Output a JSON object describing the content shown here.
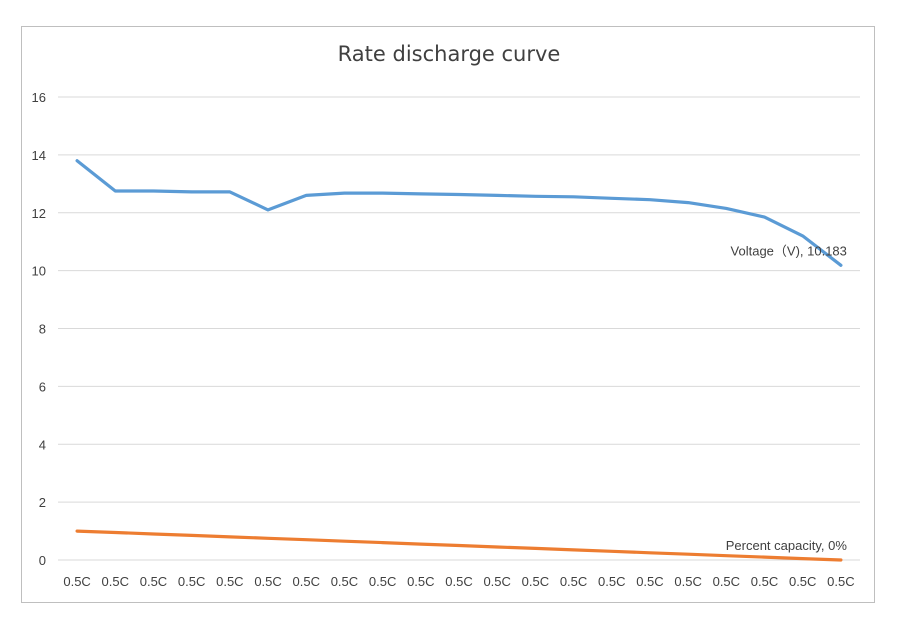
{
  "chart_data": {
    "type": "line",
    "title": "Rate discharge curve",
    "xlabel": "",
    "ylabel": "",
    "categories": [
      "0.5C",
      "0.5C",
      "0.5C",
      "0.5C",
      "0.5C",
      "0.5C",
      "0.5C",
      "0.5C",
      "0.5C",
      "0.5C",
      "0.5C",
      "0.5C",
      "0.5C",
      "0.5C",
      "0.5C",
      "0.5C",
      "0.5C",
      "0.5C",
      "0.5C",
      "0.5C",
      "0.5C"
    ],
    "ylim": [
      0,
      16
    ],
    "yticks": [
      0,
      2,
      4,
      6,
      8,
      10,
      12,
      14,
      16
    ],
    "ytick_labels": [
      "0",
      "2",
      "4",
      "6",
      "8",
      "10",
      "12",
      "14",
      "16"
    ],
    "grid": true,
    "legend": "none",
    "series": [
      {
        "name": "Voltage（V)",
        "color": "#5b9bd5",
        "values": [
          13.8,
          12.75,
          12.75,
          12.72,
          12.72,
          12.1,
          12.6,
          12.68,
          12.68,
          12.65,
          12.63,
          12.6,
          12.57,
          12.55,
          12.5,
          12.45,
          12.35,
          12.15,
          11.85,
          11.2,
          10.183
        ],
        "end_label": "Voltage（V), 10.183"
      },
      {
        "name": "Percent capacity",
        "color": "#ed7d31",
        "values": [
          1.0,
          0.95,
          0.9,
          0.85,
          0.8,
          0.75,
          0.7,
          0.65,
          0.6,
          0.55,
          0.5,
          0.45,
          0.4,
          0.35,
          0.3,
          0.25,
          0.2,
          0.15,
          0.1,
          0.05,
          0.0
        ],
        "end_label": "Percent capacity, 0%"
      }
    ]
  }
}
